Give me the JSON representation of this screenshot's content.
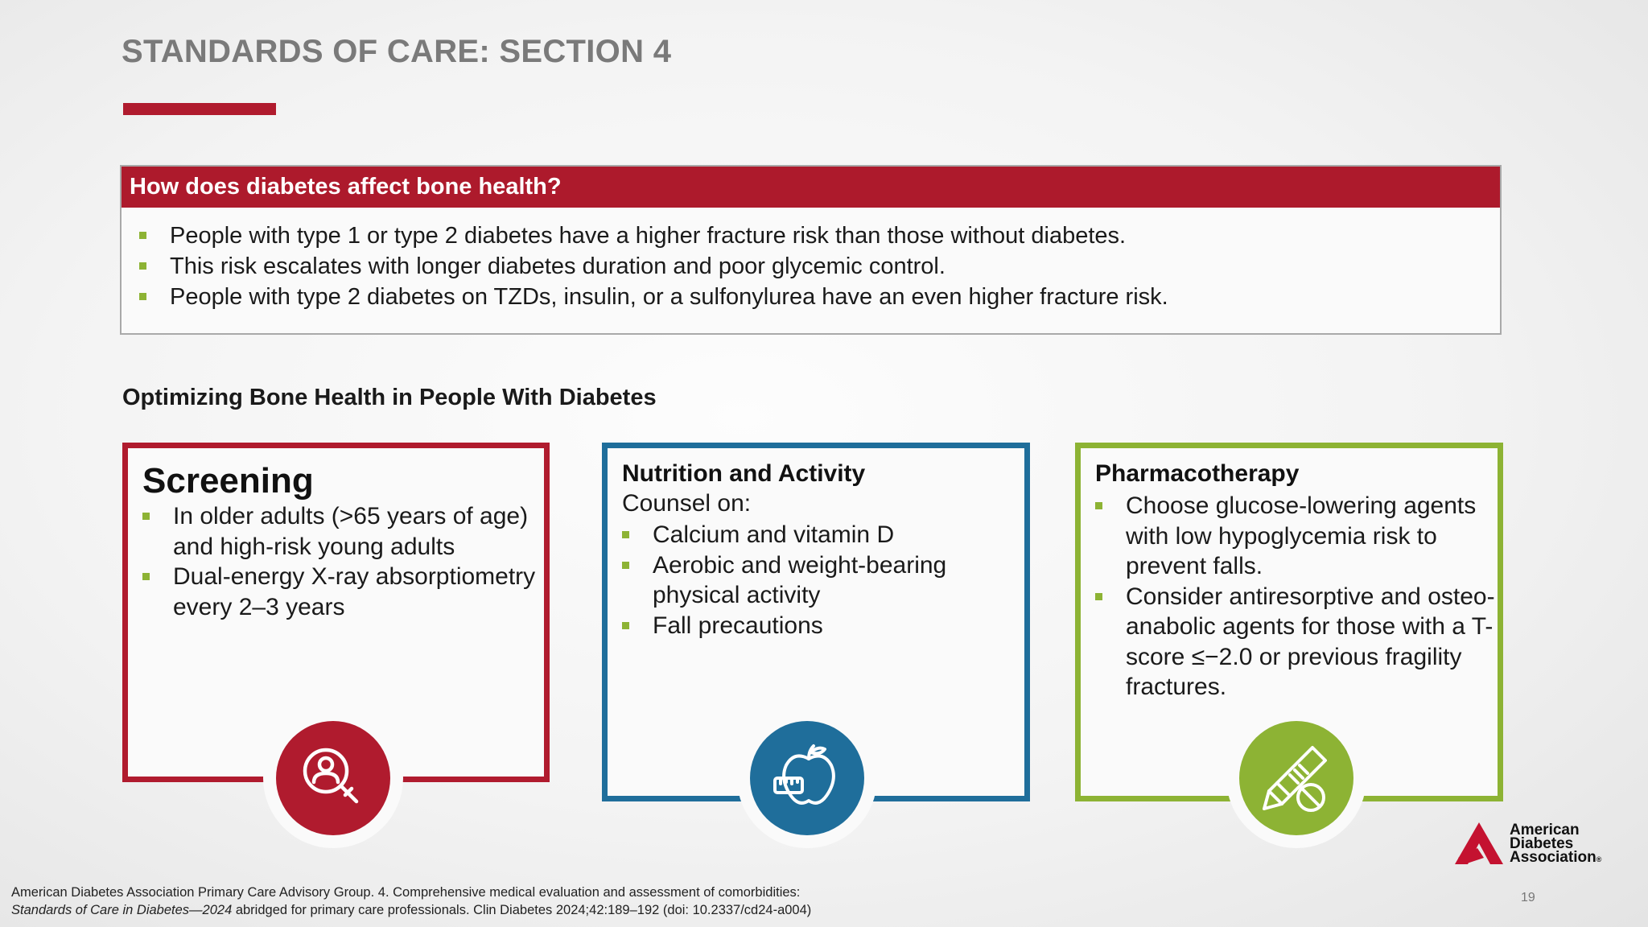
{
  "slide": {
    "title": "STANDARDS OF CARE: SECTION 4",
    "page_number": "19"
  },
  "question_box": {
    "header": "How does diabetes affect bone health?",
    "items": [
      "People with type 1 or type 2 diabetes have a higher fracture risk than those without diabetes.",
      "This risk escalates with longer diabetes duration and poor glycemic control.",
      "People with type 2 diabetes on TZDs, insulin, or a sulfonylurea have an even higher fracture risk."
    ]
  },
  "section_heading": "Optimizing Bone Health in People With Diabetes",
  "cards": {
    "screening": {
      "title": "Screening",
      "items": [
        "In older adults (>65 years of age) and high-risk young adults",
        "Dual-energy X-ray absorptiometry every 2–3 years"
      ],
      "icon": "magnifier-person-icon",
      "color": "#b01b2e"
    },
    "nutrition": {
      "title": "Nutrition and Activity",
      "subtitle": "Counsel on:",
      "items": [
        "Calcium and vitamin D",
        "Aerobic and weight-bearing physical activity",
        "Fall precautions"
      ],
      "icon": "apple-tape-measure-icon",
      "color": "#1f6e9b"
    },
    "pharma": {
      "title": "Pharmacotherapy",
      "items": [
        "Choose glucose-lowering agents with low hypoglycemia risk to prevent falls.",
        "Consider antiresorptive and osteo-anabolic agents for those with a T-score ≤−2.0 or previous fragility fractures."
      ],
      "icon": "pen-injector-pill-icon",
      "color": "#8db334"
    }
  },
  "logo": {
    "line1": "American",
    "line2": "Diabetes",
    "line3": "Association",
    "registered": "®"
  },
  "citation": {
    "line1": "American Diabetes Association Primary Care Advisory Group. 4. Comprehensive medical evaluation and assessment of comorbidities:",
    "line2_italic": "Standards of Care in Diabetes—2024",
    "line2_rest": " abridged for primary care professionals. Clin Diabetes 2024;42:189–192 (doi: 10.2337/cd24-a004)"
  }
}
